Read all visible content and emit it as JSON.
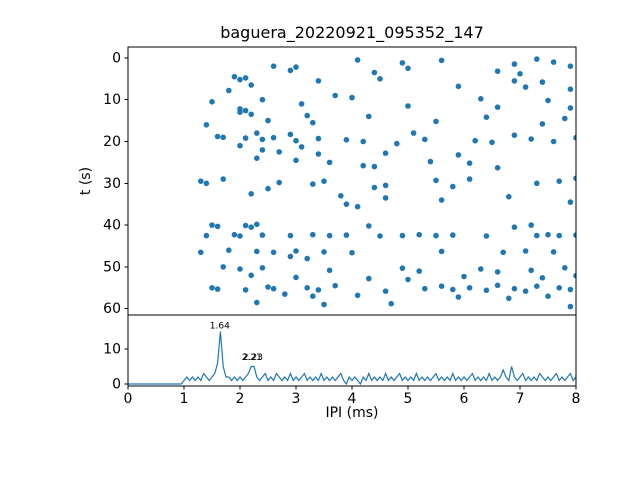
{
  "figure": {
    "title": "baguera_20220921_095352_147",
    "background": "#ffffff",
    "accent_color": "#1f77b4"
  },
  "chart_data": [
    {
      "type": "scatter",
      "name": "ipi-vs-time-scatter",
      "title": "baguera_20220921_095352_147",
      "xlabel": "",
      "ylabel": "t (s)",
      "xlim": [
        0,
        8
      ],
      "ylim": [
        61.5,
        -2.6
      ],
      "y_axis_inverted": true,
      "y_ticks": [
        0,
        10,
        20,
        30,
        40,
        50,
        60
      ],
      "marker_color": "#1f77b4",
      "points": [
        [
          4.1,
          0.5
        ],
        [
          5.6,
          0.6
        ],
        [
          7.3,
          0.3
        ],
        [
          7.6,
          1.0
        ],
        [
          6.9,
          1.5
        ],
        [
          4.9,
          1.2
        ],
        [
          2.6,
          2.0
        ],
        [
          3.0,
          2.2
        ],
        [
          5.0,
          2.5
        ],
        [
          7.9,
          2.0
        ],
        [
          2.9,
          3.0
        ],
        [
          6.6,
          3.2
        ],
        [
          4.4,
          3.5
        ],
        [
          7.0,
          3.8
        ],
        [
          1.9,
          4.5
        ],
        [
          2.1,
          4.8
        ],
        [
          2.0,
          5.2
        ],
        [
          3.4,
          5.5
        ],
        [
          4.5,
          5.0
        ],
        [
          6.9,
          5.5
        ],
        [
          7.4,
          5.8
        ],
        [
          2.2,
          6.5
        ],
        [
          5.9,
          6.8
        ],
        [
          7.1,
          7.0
        ],
        [
          7.9,
          7.5
        ],
        [
          1.8,
          7.8
        ],
        [
          3.7,
          9.0
        ],
        [
          4.0,
          9.5
        ],
        [
          2.4,
          10.0
        ],
        [
          6.3,
          9.8
        ],
        [
          7.5,
          10.2
        ],
        [
          1.5,
          10.5
        ],
        [
          3.1,
          11.0
        ],
        [
          5.0,
          11.5
        ],
        [
          6.6,
          11.8
        ],
        [
          7.9,
          12.0
        ],
        [
          2.0,
          12.2
        ],
        [
          2.1,
          12.6
        ],
        [
          2.0,
          13.0
        ],
        [
          2.2,
          13.5
        ],
        [
          3.2,
          13.8
        ],
        [
          4.3,
          14.0
        ],
        [
          6.4,
          14.2
        ],
        [
          7.8,
          14.5
        ],
        [
          2.5,
          15.0
        ],
        [
          3.3,
          15.5
        ],
        [
          5.5,
          15.2
        ],
        [
          7.4,
          15.8
        ],
        [
          1.4,
          16.0
        ],
        [
          2.3,
          18.0
        ],
        [
          2.9,
          18.3
        ],
        [
          5.1,
          18.0
        ],
        [
          6.9,
          18.5
        ],
        [
          1.6,
          18.8
        ],
        [
          1.7,
          19.0
        ],
        [
          2.1,
          19.2
        ],
        [
          2.4,
          19.5
        ],
        [
          2.6,
          19.1
        ],
        [
          3.0,
          19.8
        ],
        [
          3.4,
          19.3
        ],
        [
          3.9,
          19.6
        ],
        [
          4.2,
          20.0
        ],
        [
          5.3,
          19.5
        ],
        [
          6.2,
          19.8
        ],
        [
          6.5,
          20.2
        ],
        [
          7.2,
          19.4
        ],
        [
          7.6,
          20.0
        ],
        [
          8.0,
          19.1
        ],
        [
          4.8,
          20.5
        ],
        [
          2.0,
          21.0
        ],
        [
          3.1,
          21.3
        ],
        [
          2.4,
          22.0
        ],
        [
          2.7,
          22.5
        ],
        [
          3.4,
          23.0
        ],
        [
          4.6,
          22.8
        ],
        [
          5.9,
          23.2
        ],
        [
          2.3,
          24.0
        ],
        [
          3.0,
          24.5
        ],
        [
          3.6,
          25.0
        ],
        [
          5.4,
          24.8
        ],
        [
          6.1,
          25.2
        ],
        [
          4.2,
          25.8
        ],
        [
          4.4,
          26.0
        ],
        [
          6.6,
          26.3
        ],
        [
          1.3,
          29.5
        ],
        [
          1.4,
          30.0
        ],
        [
          1.7,
          29.0
        ],
        [
          2.7,
          29.8
        ],
        [
          3.3,
          30.2
        ],
        [
          3.5,
          29.5
        ],
        [
          4.6,
          30.5
        ],
        [
          5.5,
          29.3
        ],
        [
          5.8,
          30.8
        ],
        [
          6.1,
          29.0
        ],
        [
          7.3,
          30.0
        ],
        [
          7.7,
          29.5
        ],
        [
          8.0,
          28.8
        ],
        [
          4.4,
          31.0
        ],
        [
          2.5,
          31.3
        ],
        [
          2.2,
          32.5
        ],
        [
          3.8,
          33.0
        ],
        [
          4.6,
          33.5
        ],
        [
          5.6,
          34.0
        ],
        [
          6.8,
          33.2
        ],
        [
          7.9,
          34.5
        ],
        [
          3.9,
          35.0
        ],
        [
          4.1,
          35.6
        ],
        [
          1.5,
          40.0
        ],
        [
          1.6,
          40.3
        ],
        [
          2.1,
          40.1
        ],
        [
          2.2,
          40.5
        ],
        [
          2.3,
          39.8
        ],
        [
          4.3,
          40.2
        ],
        [
          6.9,
          40.5
        ],
        [
          7.2,
          40.0
        ],
        [
          1.4,
          42.5
        ],
        [
          1.9,
          42.3
        ],
        [
          2.0,
          42.6
        ],
        [
          2.4,
          42.4
        ],
        [
          2.9,
          42.5
        ],
        [
          3.3,
          42.3
        ],
        [
          3.6,
          42.5
        ],
        [
          3.9,
          42.4
        ],
        [
          4.5,
          42.6
        ],
        [
          4.9,
          42.5
        ],
        [
          5.2,
          42.3
        ],
        [
          5.5,
          42.5
        ],
        [
          5.8,
          42.4
        ],
        [
          6.4,
          42.6
        ],
        [
          7.3,
          42.5
        ],
        [
          7.5,
          42.3
        ],
        [
          7.7,
          42.5
        ],
        [
          8.0,
          42.4
        ],
        [
          1.3,
          46.5
        ],
        [
          1.8,
          46.0
        ],
        [
          2.3,
          46.3
        ],
        [
          2.6,
          46.5
        ],
        [
          3.0,
          46.2
        ],
        [
          3.5,
          46.4
        ],
        [
          4.0,
          46.6
        ],
        [
          5.6,
          46.3
        ],
        [
          6.7,
          46.5
        ],
        [
          7.1,
          46.2
        ],
        [
          7.6,
          46.4
        ],
        [
          2.9,
          47.5
        ],
        [
          3.2,
          48.0
        ],
        [
          1.7,
          50.0
        ],
        [
          2.0,
          50.5
        ],
        [
          2.4,
          50.2
        ],
        [
          3.6,
          50.8
        ],
        [
          4.9,
          50.3
        ],
        [
          5.2,
          51.0
        ],
        [
          6.3,
          50.5
        ],
        [
          6.6,
          51.2
        ],
        [
          7.2,
          50.8
        ],
        [
          7.8,
          50.2
        ],
        [
          2.2,
          52.0
        ],
        [
          3.0,
          52.5
        ],
        [
          4.3,
          52.8
        ],
        [
          5.0,
          53.0
        ],
        [
          6.0,
          52.3
        ],
        [
          7.4,
          52.6
        ],
        [
          8.0,
          52.1
        ],
        [
          1.5,
          55.0
        ],
        [
          1.6,
          55.3
        ],
        [
          2.1,
          55.5
        ],
        [
          2.5,
          54.8
        ],
        [
          2.6,
          55.2
        ],
        [
          3.2,
          55.0
        ],
        [
          3.4,
          55.5
        ],
        [
          3.7,
          54.5
        ],
        [
          4.6,
          55.8
        ],
        [
          5.3,
          55.2
        ],
        [
          5.6,
          54.6
        ],
        [
          5.8,
          55.4
        ],
        [
          6.1,
          55.0
        ],
        [
          6.4,
          55.6
        ],
        [
          6.6,
          54.4
        ],
        [
          6.9,
          55.2
        ],
        [
          7.1,
          55.8
        ],
        [
          7.3,
          54.6
        ],
        [
          7.7,
          55.0
        ],
        [
          7.9,
          55.4
        ],
        [
          2.8,
          56.5
        ],
        [
          3.3,
          57.0
        ],
        [
          4.1,
          56.8
        ],
        [
          5.9,
          57.2
        ],
        [
          6.8,
          57.5
        ],
        [
          7.5,
          57.0
        ],
        [
          2.3,
          58.5
        ],
        [
          3.5,
          59.0
        ],
        [
          4.7,
          58.8
        ],
        [
          7.9,
          59.5
        ]
      ]
    },
    {
      "type": "line",
      "name": "ipi-histogram",
      "xlabel": "IPI (ms)",
      "ylabel": "",
      "xlim": [
        0,
        8
      ],
      "ylim": [
        -0.57,
        19.7
      ],
      "x_ticks": [
        0,
        1,
        2,
        3,
        4,
        5,
        6,
        7,
        8
      ],
      "y_ticks": [
        0,
        10
      ],
      "line_color": "#1f77b4",
      "x_start": 0,
      "x_step": 0.05,
      "values": [
        0,
        0,
        0,
        0,
        0,
        0,
        0,
        0,
        0,
        0,
        0,
        0,
        0,
        0,
        0,
        0,
        0,
        0,
        0,
        0,
        1,
        2,
        1,
        2,
        1,
        2,
        1,
        3,
        2,
        1,
        2,
        3,
        6,
        15,
        5,
        2,
        2,
        1,
        2,
        1,
        2,
        1,
        2,
        3,
        5,
        5,
        2,
        1,
        2,
        3,
        1,
        2,
        1,
        3,
        2,
        1,
        2,
        1,
        3,
        1,
        2,
        1,
        2,
        3,
        1,
        2,
        1,
        2,
        1,
        3,
        1,
        2,
        1,
        2,
        1,
        2,
        3,
        1,
        0,
        2,
        1,
        2,
        1,
        0,
        2,
        1,
        3,
        1,
        2,
        1,
        2,
        1,
        3,
        1,
        2,
        1,
        2,
        3,
        1,
        2,
        1,
        2,
        1,
        3,
        1,
        2,
        1,
        2,
        1,
        2,
        3,
        1,
        2,
        1,
        2,
        1,
        3,
        1,
        2,
        1,
        2,
        1,
        2,
        3,
        1,
        2,
        1,
        2,
        1,
        3,
        1,
        2,
        1,
        2,
        4,
        2,
        1,
        5,
        2,
        1,
        2,
        3,
        1,
        2,
        1,
        2,
        1,
        3,
        2,
        1,
        2,
        1,
        2,
        3,
        1,
        2,
        1,
        2,
        3,
        1,
        2
      ],
      "annotations": [
        {
          "x": 1.64,
          "y": 15,
          "label": "1.64"
        },
        {
          "x": 2.21,
          "y": 6,
          "label": "2.21"
        },
        {
          "x": 2.23,
          "y": 6,
          "label": "2.23"
        }
      ]
    }
  ]
}
